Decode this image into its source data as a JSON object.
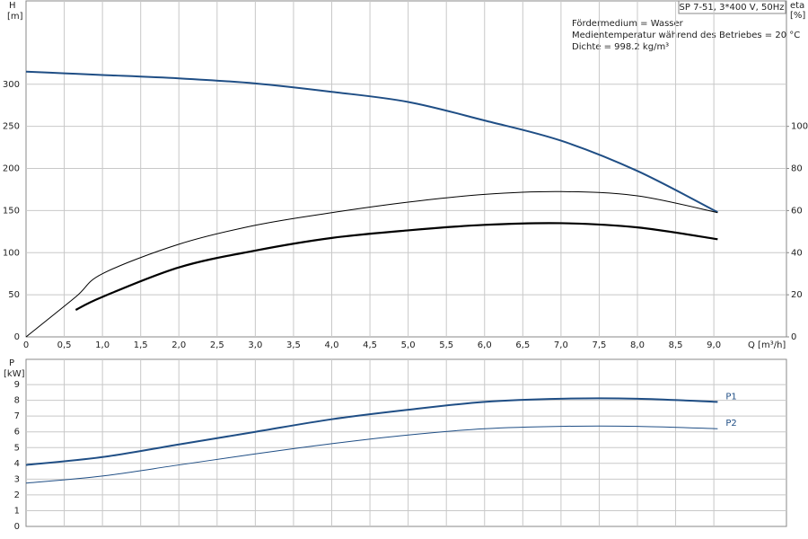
{
  "chart_data": [
    {
      "type": "line",
      "y_label": "H",
      "y_unit": "[m]",
      "y2_label": "eta",
      "y2_unit": "[%]",
      "x_label": "Q [m³/h]",
      "info_box": "SP 7-51, 3*400 V, 50Hz",
      "notes": [
        "Fördermedium = Wasser",
        "Medientemperatur während des Betriebes = 20 °C",
        "Dichte = 998.2 kg/m³"
      ],
      "xlim": [
        0,
        9.95
      ],
      "ylim": [
        0,
        399
      ],
      "y2lim": [
        0,
        159.6
      ],
      "xticks": [
        0,
        {
          "value": 0.5,
          "label": "0,5"
        },
        {
          "value": 1,
          "label": "1,0"
        },
        {
          "value": 1.5,
          "label": "1,5"
        },
        {
          "value": 2,
          "label": "2,0"
        },
        {
          "value": 2.5,
          "label": "2,5"
        },
        {
          "value": 3,
          "label": "3,0"
        },
        {
          "value": 3.5,
          "label": "3,5"
        },
        {
          "value": 4,
          "label": "4,0"
        },
        {
          "value": 4.5,
          "label": "4,5"
        },
        {
          "value": 5,
          "label": "5,0"
        },
        {
          "value": 5.5,
          "label": "5,5"
        },
        {
          "value": 6,
          "label": "6,0"
        },
        {
          "value": 6.5,
          "label": "6,5"
        },
        {
          "value": 7,
          "label": "7,0"
        },
        {
          "value": 7.5,
          "label": "7,5"
        },
        {
          "value": 8,
          "label": "8,0"
        },
        {
          "value": 8.5,
          "label": "8,5"
        },
        {
          "value": 9,
          "label": "9,0"
        }
      ],
      "yticks": [
        0,
        50,
        100,
        150,
        200,
        250,
        300
      ],
      "y2ticks": [
        0,
        20,
        40,
        60,
        80,
        100
      ],
      "grid": true,
      "series": [
        {
          "color": "#1f4e85",
          "line_width": 2,
          "x": [
            0,
            0.5,
            1,
            2,
            3,
            4,
            5,
            6,
            7,
            8,
            9.05
          ],
          "values": [
            315,
            313,
            311,
            307,
            301,
            291,
            279,
            257,
            233,
            197,
            148
          ]
        },
        {
          "color": "#000000",
          "line_width": 1,
          "axis": "y2",
          "x": [
            0,
            0.65,
            1,
            2,
            3,
            4,
            5,
            6,
            7,
            8,
            9.05
          ],
          "values": [
            0,
            19,
            30,
            44,
            53,
            59,
            64,
            67.7,
            69,
            67,
            59
          ]
        },
        {
          "color": "#000000",
          "line_width": 2.2,
          "axis": "y2",
          "x": [
            0.65,
            1,
            2,
            3,
            4,
            5,
            6,
            7,
            8,
            9.05
          ],
          "values": [
            12.8,
            19,
            33,
            41,
            47,
            50.6,
            53.2,
            54,
            52,
            46.4
          ]
        }
      ]
    },
    {
      "type": "line",
      "y_label": "P",
      "y_unit": "[kW]",
      "xlim": [
        0,
        9.95
      ],
      "ylim": [
        0,
        10.6
      ],
      "yticks": [
        0,
        1,
        2,
        3,
        4,
        5,
        6,
        7,
        8,
        9
      ],
      "grid": true,
      "series": [
        {
          "name": "P1",
          "color": "#1f4e85",
          "line_width": 2,
          "x": [
            0,
            1,
            2,
            3,
            4,
            5,
            6,
            7,
            8,
            9.05
          ],
          "values": [
            3.9,
            4.4,
            5.2,
            6.0,
            6.8,
            7.4,
            7.9,
            8.1,
            8.1,
            7.9
          ]
        },
        {
          "name": "P2",
          "color": "#1f4e85",
          "line_width": 1,
          "x": [
            0,
            1,
            2,
            3,
            4,
            5,
            6,
            7,
            8,
            9.05
          ],
          "values": [
            2.75,
            3.2,
            3.9,
            4.6,
            5.25,
            5.8,
            6.2,
            6.35,
            6.35,
            6.2
          ]
        }
      ]
    }
  ]
}
